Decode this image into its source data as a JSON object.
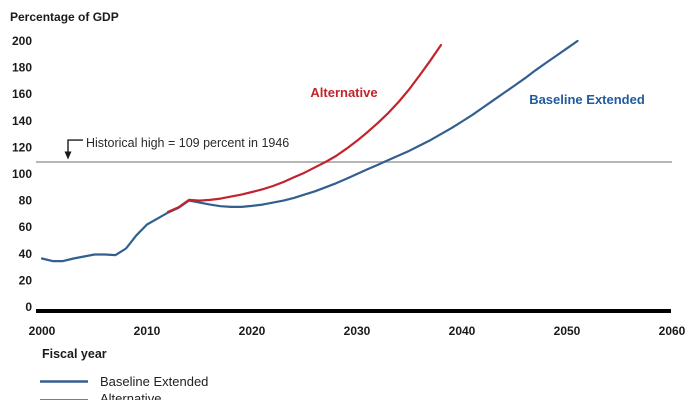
{
  "chart_data": {
    "type": "line",
    "title": "Percentage of GDP",
    "xlabel": "Fiscal year",
    "ylabel": "Percentage of GDP",
    "xlim": [
      2000,
      2060
    ],
    "ylim": [
      0,
      200
    ],
    "xticks": [
      2000,
      2010,
      2020,
      2030,
      2040,
      2050,
      2060
    ],
    "yticks": [
      0,
      20,
      40,
      60,
      80,
      100,
      120,
      140,
      160,
      180,
      200
    ],
    "grid": false,
    "legend_position": "bottom-left",
    "reference_line": {
      "value": 109,
      "label": "Historical high = 109 percent in 1946",
      "color": "#9e9e9e"
    },
    "axis_color": "#000000",
    "series": [
      {
        "name": "Baseline Extended",
        "color": "#335f8f",
        "label_color": "#1f5c9e",
        "points": [
          [
            2000,
            36.5
          ],
          [
            2001,
            34.5
          ],
          [
            2002,
            34.5
          ],
          [
            2003,
            36.5
          ],
          [
            2004,
            38
          ],
          [
            2005,
            39.5
          ],
          [
            2006,
            39.5
          ],
          [
            2007,
            39
          ],
          [
            2008,
            44
          ],
          [
            2009,
            54
          ],
          [
            2010,
            62
          ],
          [
            2011,
            66.5
          ],
          [
            2012,
            71
          ],
          [
            2013,
            74.5
          ],
          [
            2014,
            80
          ],
          [
            2015,
            78.5
          ],
          [
            2016,
            77
          ],
          [
            2017,
            75.8
          ],
          [
            2018,
            75.3
          ],
          [
            2019,
            75.3
          ],
          [
            2020,
            76
          ],
          [
            2021,
            77
          ],
          [
            2022,
            78.5
          ],
          [
            2023,
            80
          ],
          [
            2024,
            82
          ],
          [
            2025,
            84.5
          ],
          [
            2026,
            87
          ],
          [
            2027,
            90
          ],
          [
            2028,
            93
          ],
          [
            2029,
            96.5
          ],
          [
            2030,
            100
          ],
          [
            2031,
            103.5
          ],
          [
            2032,
            107
          ],
          [
            2033,
            110.5
          ],
          [
            2034,
            114
          ],
          [
            2035,
            117.5
          ],
          [
            2036,
            121.5
          ],
          [
            2037,
            125.5
          ],
          [
            2038,
            130
          ],
          [
            2039,
            134.5
          ],
          [
            2040,
            139.5
          ],
          [
            2041,
            144.5
          ],
          [
            2042,
            150
          ],
          [
            2043,
            155.5
          ],
          [
            2044,
            161
          ],
          [
            2045,
            166.5
          ],
          [
            2046,
            172
          ],
          [
            2047,
            178
          ],
          [
            2048,
            183.5
          ],
          [
            2049,
            189
          ],
          [
            2050,
            194.5
          ],
          [
            2051,
            200
          ]
        ]
      },
      {
        "name": "Alternative",
        "color": "#c2242c",
        "label_color": "#c2242c",
        "points": [
          [
            2012,
            71.5
          ],
          [
            2013,
            75
          ],
          [
            2014,
            80.5
          ],
          [
            2015,
            80
          ],
          [
            2016,
            80.5
          ],
          [
            2017,
            81.5
          ],
          [
            2018,
            83
          ],
          [
            2019,
            84.5
          ],
          [
            2020,
            86.5
          ],
          [
            2021,
            88.5
          ],
          [
            2022,
            91
          ],
          [
            2023,
            94
          ],
          [
            2024,
            97.5
          ],
          [
            2025,
            101
          ],
          [
            2026,
            105
          ],
          [
            2027,
            109
          ],
          [
            2028,
            113.5
          ],
          [
            2029,
            119
          ],
          [
            2030,
            125
          ],
          [
            2031,
            131.5
          ],
          [
            2032,
            138.5
          ],
          [
            2033,
            146
          ],
          [
            2034,
            154.5
          ],
          [
            2035,
            164
          ],
          [
            2036,
            174.5
          ],
          [
            2037,
            185.5
          ],
          [
            2038,
            197
          ]
        ]
      }
    ]
  }
}
